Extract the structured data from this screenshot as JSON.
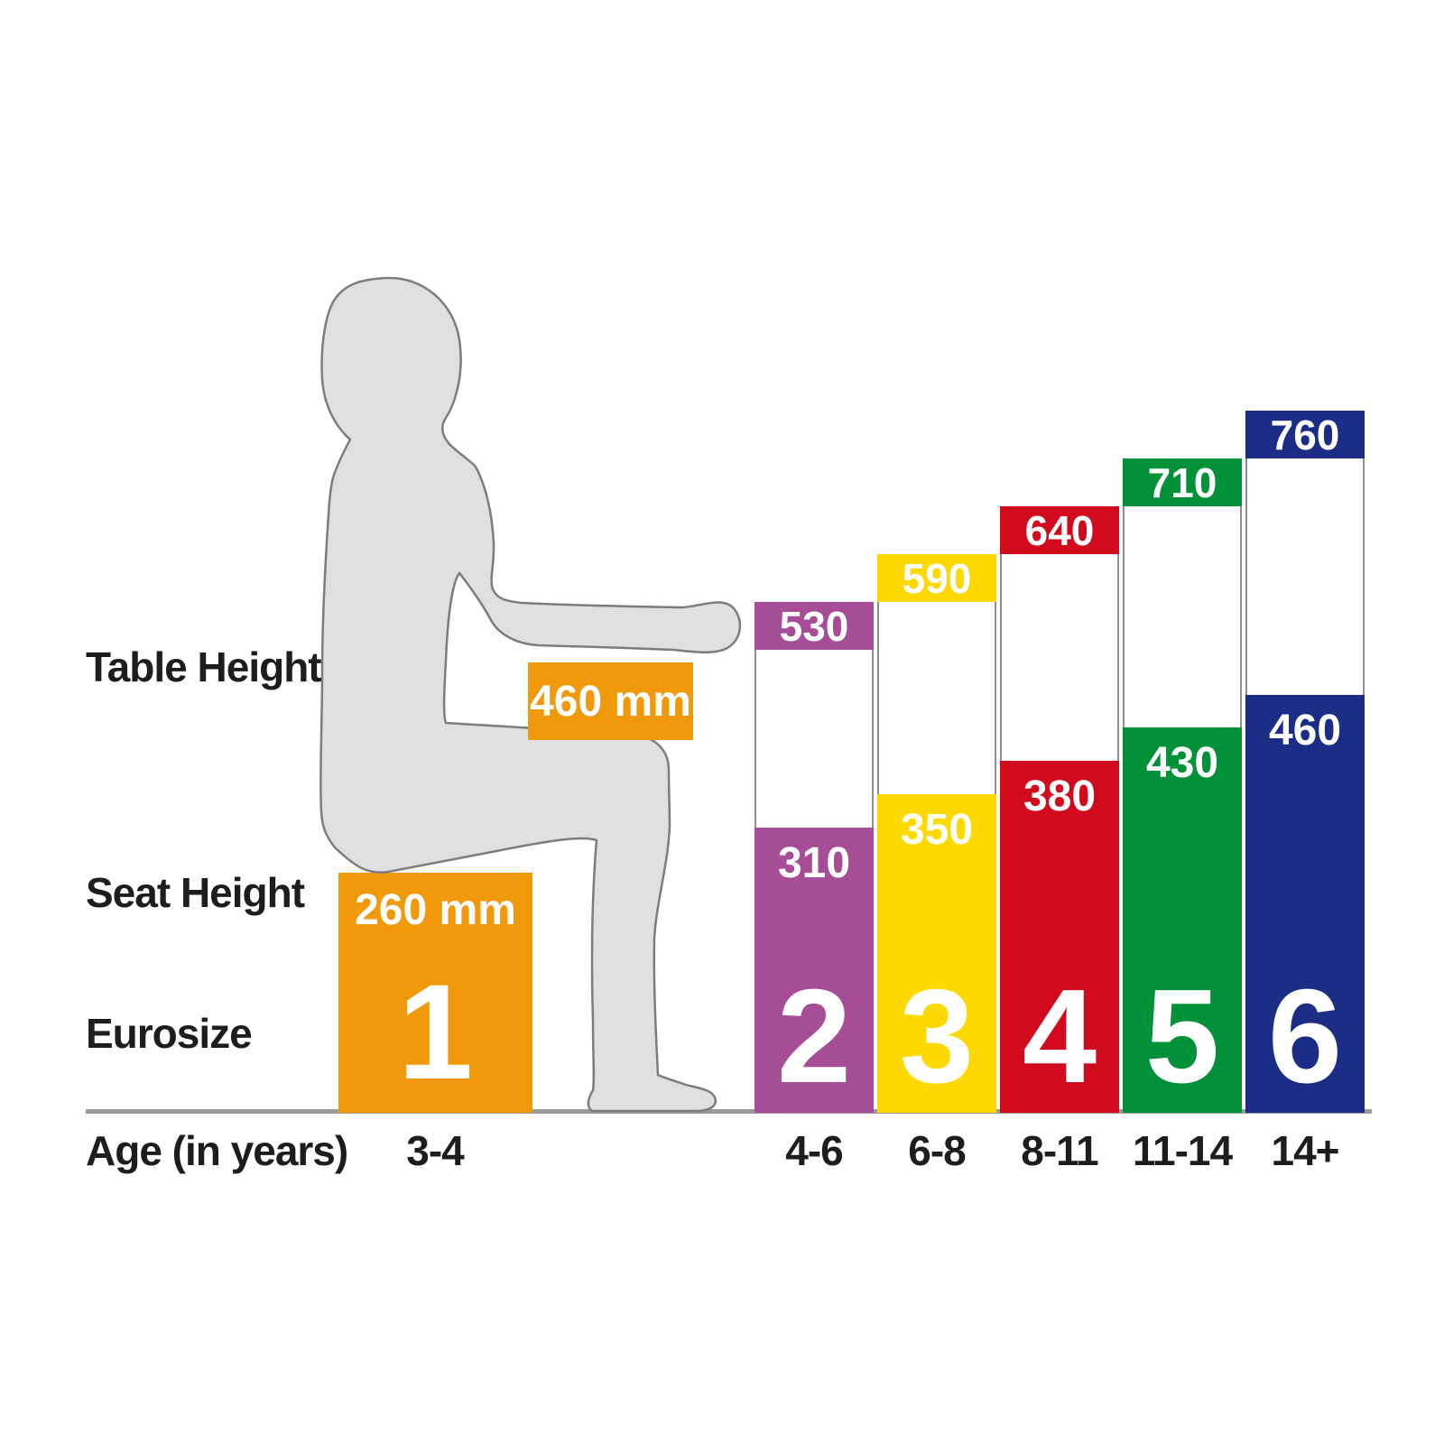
{
  "labels": {
    "table_height": "Table Height",
    "seat_height": "Seat Height",
    "eurosize": "Eurosize",
    "age": "Age (in years)"
  },
  "colors": {
    "orange": "#F0990B",
    "purple": "#A74C97",
    "yellow": "#FDD900",
    "red": "#D10A1E",
    "green": "#009139",
    "blue": "#1C2D86",
    "silhouette_fill": "#DEE0E1",
    "silhouette_outline": "#7D7D7D",
    "baseline_gray": "#9B9B9B",
    "text_black": "#1D1D1B",
    "value_text_white": "#FFFFFF"
  },
  "chart_data": {
    "type": "bar",
    "unit": "mm",
    "xlabel": "Age (in years)",
    "categories_label": "Eurosize",
    "categories": [
      "1",
      "2",
      "3",
      "4",
      "5",
      "6"
    ],
    "ages": [
      "3-4",
      "4-6",
      "6-8",
      "8-11",
      "11-14",
      "14+"
    ],
    "series": [
      {
        "name": "Table Height",
        "values": [
          460,
          530,
          590,
          640,
          710,
          760
        ]
      },
      {
        "name": "Seat Height",
        "values": [
          260,
          310,
          350,
          380,
          430,
          460
        ]
      }
    ],
    "legend_position": "none",
    "grid": false,
    "sizes": [
      {
        "eurosize": "1",
        "age": "3-4",
        "table_height_mm": 460,
        "seat_height_mm": 260,
        "table_label": "460 mm",
        "seat_label": "260 mm",
        "color": "#F0990B"
      },
      {
        "eurosize": "2",
        "age": "4-6",
        "table_height_mm": 530,
        "seat_height_mm": 310,
        "color": "#A74C97"
      },
      {
        "eurosize": "3",
        "age": "6-8",
        "table_height_mm": 590,
        "seat_height_mm": 350,
        "color": "#FDD900"
      },
      {
        "eurosize": "4",
        "age": "8-11",
        "table_height_mm": 640,
        "seat_height_mm": 380,
        "color": "#D10A1E"
      },
      {
        "eurosize": "5",
        "age": "11-14",
        "table_height_mm": 710,
        "seat_height_mm": 430,
        "color": "#009139"
      },
      {
        "eurosize": "6",
        "age": "14+",
        "table_height_mm": 760,
        "seat_height_mm": 460,
        "color": "#1C2D86"
      }
    ]
  }
}
